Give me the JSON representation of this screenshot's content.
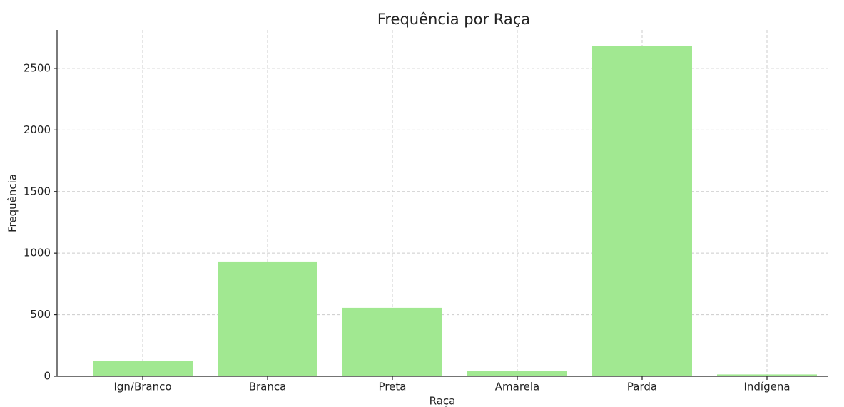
{
  "chart_data": {
    "type": "bar",
    "title": "Frequência por Raça",
    "x_label": "Raça",
    "y_label": "Frequência",
    "categories": [
      "Ign/Branco",
      "Branca",
      "Preta",
      "Amarela",
      "Parda",
      "Indígena"
    ],
    "values": [
      127,
      932,
      556,
      46,
      2679,
      15
    ],
    "color": "#a1e891",
    "ylim": [
      0,
      2812
    ],
    "yticks": [
      0,
      500,
      1000,
      1500,
      2000,
      2500
    ],
    "grid": true
  }
}
